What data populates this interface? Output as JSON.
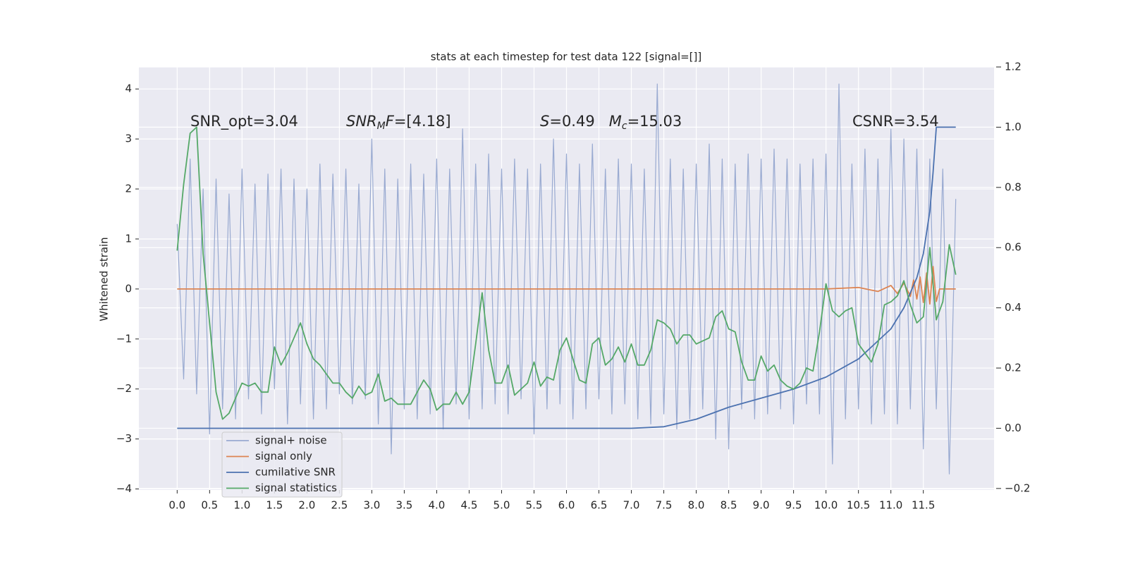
{
  "chart_data": {
    "type": "line",
    "title": "stats at each timestep for test data 122 [signal=[]]",
    "y_label": "Whitened strain",
    "annotations": [
      [
        "SNR_opt=3.04"
      ],
      [
        "SNR",
        "M",
        "F",
        "=[4.18]"
      ],
      [
        "S",
        "=0.49   ",
        "M",
        "c",
        "=15.03"
      ],
      [
        "CSNR=3.54"
      ]
    ],
    "xlim": [
      -0.59,
      12.59
    ],
    "ylim": [
      -4.02,
      4.44
    ],
    "y2lim": [
      -0.205,
      1.2
    ],
    "xticks": [
      {
        "value": 0,
        "label": "0.0"
      },
      0.5,
      {
        "value": 1,
        "label": "1.0"
      },
      1.5,
      {
        "value": 2,
        "label": "2.0"
      },
      2.5,
      {
        "value": 3,
        "label": "3.0"
      },
      3.5,
      {
        "value": 4,
        "label": "4.0"
      },
      4.5,
      {
        "value": 5,
        "label": "5.0"
      },
      5.5,
      {
        "value": 6,
        "label": "6.0"
      },
      6.5,
      {
        "value": 7,
        "label": "7.0"
      },
      7.5,
      {
        "value": 8,
        "label": "8.0"
      },
      8.5,
      {
        "value": 9,
        "label": "9.0"
      },
      9.5,
      {
        "value": 10,
        "label": "10.0"
      },
      10.5,
      {
        "value": 11,
        "label": "11.0"
      },
      11.5
    ],
    "yticks": [
      {
        "value": -4,
        "label": "−4"
      },
      {
        "value": -3,
        "label": "−3"
      },
      {
        "value": -2,
        "label": "−2"
      },
      {
        "value": -1,
        "label": "−1"
      },
      0,
      1,
      2,
      3,
      4
    ],
    "y2ticks": [
      {
        "value": -0.2,
        "label": "−0.2"
      },
      {
        "value": 0,
        "label": "0.0"
      },
      0.2,
      0.4,
      0.6,
      0.8,
      {
        "value": 1,
        "label": "1.0"
      },
      1.2
    ],
    "grid": true,
    "legend": "lower left",
    "x": [
      0,
      0.1,
      0.2,
      0.3,
      0.4,
      0.5,
      0.6,
      0.7,
      0.8,
      0.9,
      1,
      1.1,
      1.2,
      1.3,
      1.4,
      1.5,
      1.6,
      1.7,
      1.8,
      1.9,
      2,
      2.1,
      2.2,
      2.3,
      2.4,
      2.5,
      2.6,
      2.7,
      2.8,
      2.9,
      3,
      3.1,
      3.2,
      3.3,
      3.4,
      3.5,
      3.6,
      3.7,
      3.8,
      3.9,
      4,
      4.1,
      4.2,
      4.3,
      4.4,
      4.5,
      4.6,
      4.7,
      4.8,
      4.9,
      5,
      5.1,
      5.2,
      5.3,
      5.4,
      5.5,
      5.6,
      5.7,
      5.8,
      5.9,
      6,
      6.1,
      6.2,
      6.3,
      6.4,
      6.5,
      6.6,
      6.7,
      6.8,
      6.9,
      7,
      7.1,
      7.2,
      7.3,
      7.4,
      7.5,
      7.6,
      7.7,
      7.8,
      7.9,
      8,
      8.1,
      8.2,
      8.3,
      8.4,
      8.5,
      8.6,
      8.7,
      8.8,
      8.9,
      9,
      9.1,
      9.2,
      9.3,
      9.4,
      9.5,
      9.6,
      9.7,
      9.8,
      9.9,
      10,
      10.1,
      10.2,
      10.3,
      10.4,
      10.5,
      10.6,
      10.7,
      10.8,
      10.9,
      11,
      11.1,
      11.2,
      11.3,
      11.4,
      11.5,
      11.6,
      11.7,
      11.8,
      11.9,
      12
    ],
    "series": [
      {
        "name": "signal+ noise",
        "color": "#99aad1",
        "values": [
          1.3,
          -1.8,
          2.6,
          -2.1,
          2.0,
          -2.9,
          2.2,
          -2.4,
          1.9,
          -2.6,
          2.4,
          -2.2,
          2.1,
          -2.5,
          2.3,
          -2.0,
          2.4,
          -2.7,
          2.2,
          -2.3,
          2.0,
          -2.6,
          2.5,
          -2.4,
          2.3,
          -2.1,
          2.4,
          -2.3,
          2.1,
          -2.2,
          3.0,
          -2.7,
          2.4,
          -3.3,
          2.2,
          -2.4,
          2.5,
          -2.6,
          2.3,
          -2.5,
          2.6,
          -2.8,
          2.4,
          -2.3,
          3.2,
          -2.6,
          2.5,
          -2.4,
          2.7,
          -2.3,
          2.4,
          -2.5,
          2.6,
          -2.2,
          2.4,
          -2.9,
          2.5,
          -2.4,
          3.0,
          -2.3,
          2.7,
          -2.6,
          2.5,
          -2.4,
          2.9,
          -2.2,
          2.4,
          -2.5,
          2.6,
          -2.3,
          2.5,
          -2.6,
          2.4,
          -2.7,
          4.1,
          -2.5,
          2.6,
          -2.8,
          2.4,
          -2.6,
          2.5,
          -2.4,
          2.9,
          -3.0,
          2.6,
          -3.2,
          2.5,
          -2.4,
          2.7,
          -2.6,
          2.6,
          -2.5,
          2.8,
          -2.4,
          2.6,
          -2.7,
          2.5,
          -2.3,
          2.6,
          -2.5,
          2.7,
          -3.5,
          4.1,
          -2.6,
          2.5,
          -2.4,
          2.8,
          -2.7,
          2.6,
          -2.5,
          3.2,
          -2.7,
          3.0,
          -2.4,
          2.8,
          -3.2,
          2.6,
          -2.4,
          2.4,
          -3.7,
          1.8
        ]
      },
      {
        "name": "signal only",
        "color": "#dd8452",
        "x": [
          0,
          2,
          4,
          6,
          8,
          10,
          10.5,
          10.8,
          11.0,
          11.1,
          11.2,
          11.3,
          11.35,
          11.4,
          11.45,
          11.5,
          11.55,
          11.6,
          11.65,
          11.7,
          11.75,
          12
        ],
        "values": [
          0,
          0,
          0,
          0,
          0,
          0,
          0.03,
          -0.05,
          0.07,
          -0.09,
          0.12,
          -0.15,
          0.18,
          -0.2,
          0.24,
          -0.27,
          0.32,
          -0.3,
          0.45,
          -0.25,
          0,
          0
        ]
      },
      {
        "name": "cumilative SNR",
        "color": "#4c72b0",
        "axis": "y2",
        "x": [
          0,
          7,
          7.5,
          8,
          8.5,
          9,
          9.5,
          10,
          10.5,
          11,
          11.2,
          11.4,
          11.5,
          11.6,
          11.65,
          11.7,
          12
        ],
        "values": [
          0,
          0,
          0.005,
          0.03,
          0.07,
          0.1,
          0.13,
          0.17,
          0.23,
          0.33,
          0.4,
          0.5,
          0.58,
          0.72,
          0.85,
          1.0,
          1.0
        ]
      },
      {
        "name": "signal statistics",
        "color": "#55a868",
        "axis": "y2",
        "values": [
          0.59,
          0.81,
          0.98,
          1.0,
          0.58,
          0.35,
          0.12,
          0.03,
          0.05,
          0.1,
          0.15,
          0.14,
          0.15,
          0.12,
          0.12,
          0.27,
          0.21,
          0.25,
          0.3,
          0.35,
          0.28,
          0.23,
          0.21,
          0.18,
          0.15,
          0.15,
          0.12,
          0.1,
          0.14,
          0.11,
          0.12,
          0.18,
          0.09,
          0.1,
          0.08,
          0.08,
          0.08,
          0.12,
          0.16,
          0.13,
          0.06,
          0.08,
          0.08,
          0.12,
          0.08,
          0.12,
          0.28,
          0.45,
          0.26,
          0.15,
          0.15,
          0.21,
          0.11,
          0.13,
          0.15,
          0.22,
          0.14,
          0.17,
          0.16,
          0.26,
          0.3,
          0.23,
          0.16,
          0.15,
          0.28,
          0.3,
          0.21,
          0.23,
          0.27,
          0.22,
          0.28,
          0.21,
          0.21,
          0.26,
          0.36,
          0.35,
          0.33,
          0.28,
          0.31,
          0.31,
          0.28,
          0.29,
          0.3,
          0.37,
          0.39,
          0.33,
          0.32,
          0.22,
          0.16,
          0.16,
          0.24,
          0.19,
          0.21,
          0.16,
          0.14,
          0.13,
          0.15,
          0.2,
          0.19,
          0.32,
          0.48,
          0.39,
          0.37,
          0.39,
          0.4,
          0.28,
          0.25,
          0.22,
          0.28,
          0.41,
          0.42,
          0.44,
          0.49,
          0.41,
          0.35,
          0.37,
          0.6,
          0.36,
          0.42,
          0.61,
          0.51
        ]
      }
    ]
  }
}
